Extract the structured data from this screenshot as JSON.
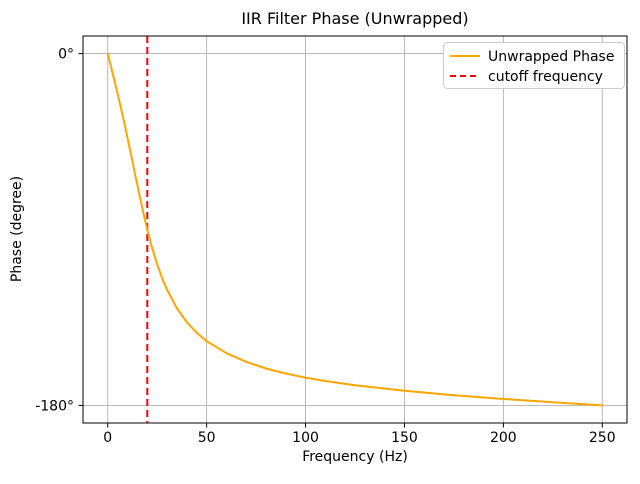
{
  "figure": {
    "background": "#ffffff",
    "spine_color": "#000000",
    "tick_color": "#000000"
  },
  "chart_data": {
    "type": "line",
    "title": "IIR Filter Phase (Unwrapped)",
    "xlabel": "Frequency (Hz)",
    "ylabel": "Phase (degree)",
    "xlim": [
      -12.5,
      262.5
    ],
    "ylim": [
      -189,
      9
    ],
    "x_ticks": [
      0,
      50,
      100,
      150,
      200,
      250
    ],
    "x_tick_labels": [
      "0",
      "50",
      "100",
      "150",
      "200",
      "250"
    ],
    "y_ticks": [
      0,
      -180
    ],
    "y_tick_labels": [
      "0°",
      "-180°"
    ],
    "grid": true,
    "grid_color": "#b0b0b0",
    "legend_position": "upper right",
    "series": [
      {
        "name": "Unwrapped Phase",
        "color": "#ffa500",
        "style": "solid",
        "x": [
          0,
          2,
          4,
          6,
          8,
          10,
          12,
          14,
          16,
          18,
          20,
          22,
          25,
          28,
          30,
          35,
          40,
          45,
          50,
          60,
          70,
          80,
          90,
          100,
          110,
          125,
          150,
          175,
          200,
          225,
          250
        ],
        "y": [
          0,
          -8.1,
          -16.3,
          -24.9,
          -33.8,
          -43.1,
          -52.8,
          -62.6,
          -72.2,
          -81.4,
          -90,
          -97.8,
          -107.9,
          -116.2,
          -120.9,
          -130.4,
          -137.5,
          -142.8,
          -147.1,
          -153.3,
          -157.7,
          -161.1,
          -163.7,
          -165.8,
          -167.5,
          -169.7,
          -172.5,
          -174.8,
          -176.7,
          -178.4,
          -180
        ]
      }
    ],
    "cutoff_line": {
      "label": "cutoff frequency",
      "color": "#ff0000",
      "style": "dashed",
      "x": 20
    }
  }
}
